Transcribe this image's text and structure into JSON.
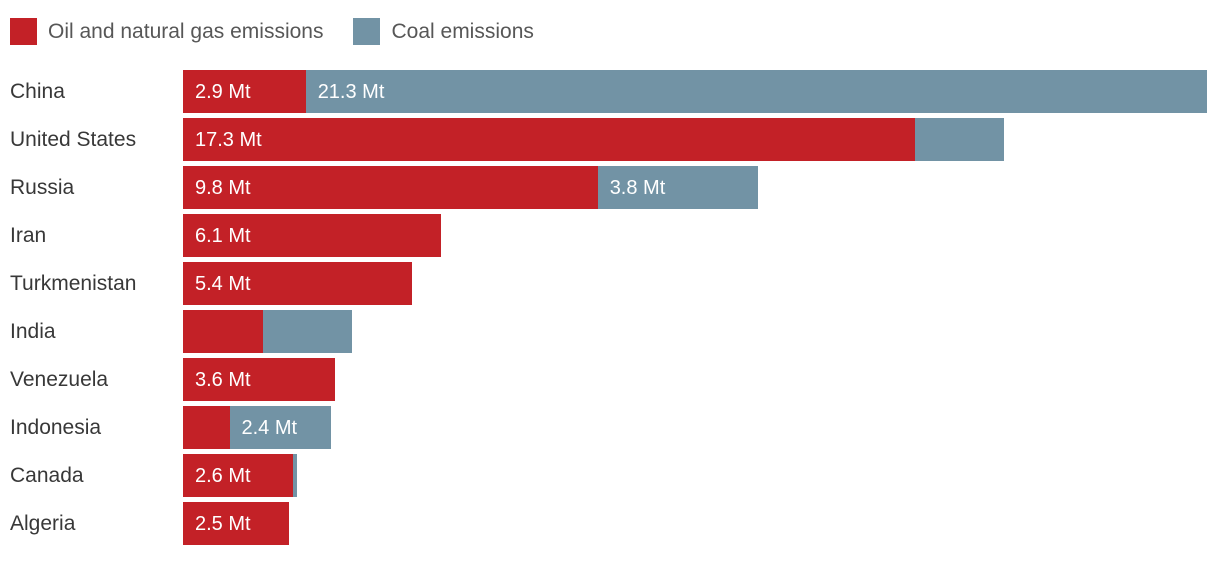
{
  "legend": {
    "items": [
      {
        "label": "Oil and natural gas emissions",
        "color": "#c32127"
      },
      {
        "label": "Coal emissions",
        "color": "#7293a5"
      }
    ]
  },
  "chart_data": {
    "type": "bar",
    "orientation": "horizontal",
    "stacked": true,
    "unit": "Mt",
    "legend_position": "top",
    "grid": false,
    "xlim": [
      0,
      24.2
    ],
    "categories": [
      "China",
      "United States",
      "Russia",
      "Iran",
      "Turkmenistan",
      "India",
      "Venezuela",
      "Indonesia",
      "Canada",
      "Algeria"
    ],
    "series": [
      {
        "name": "Oil and natural gas emissions",
        "color": "#c32127",
        "values": [
          2.9,
          17.3,
          9.8,
          6.1,
          5.4,
          1.9,
          3.6,
          1.1,
          2.6,
          2.5
        ],
        "labels": [
          "2.9 Mt",
          "17.3 Mt",
          "9.8 Mt",
          "6.1 Mt",
          "5.4 Mt",
          "",
          "3.6 Mt",
          "",
          "2.6 Mt",
          "2.5 Mt"
        ]
      },
      {
        "name": "Coal emissions",
        "color": "#7293a5",
        "values": [
          21.3,
          2.1,
          3.8,
          0,
          0,
          2.1,
          0,
          2.4,
          0.1,
          0
        ],
        "labels": [
          "21.3 Mt",
          "",
          "3.8 Mt",
          "",
          "",
          "",
          "",
          "2.4 Mt",
          "",
          ""
        ]
      }
    ]
  }
}
